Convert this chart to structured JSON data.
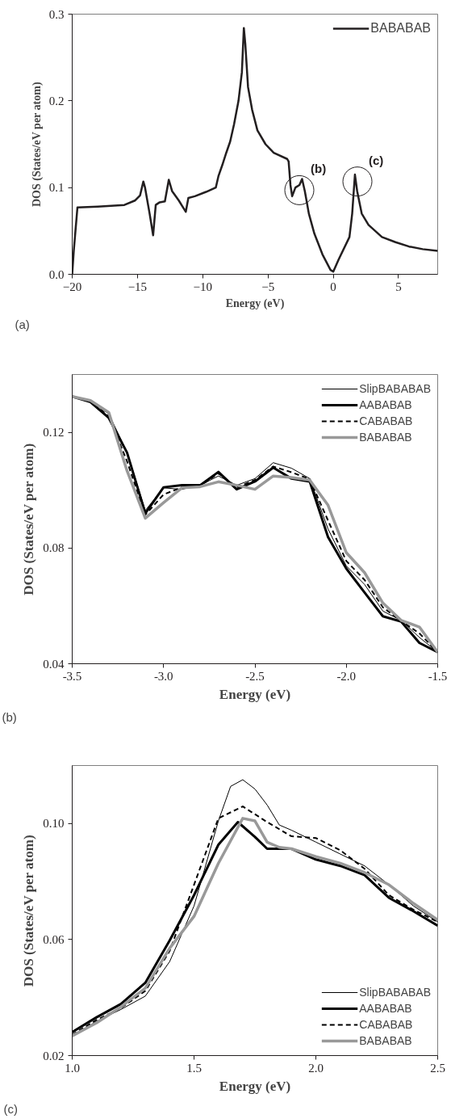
{
  "chart_data": [
    {
      "type": "line",
      "xlabel": "Energy (eV)",
      "ylabel": "DOS (States/eV per atom)",
      "xlim": [
        -20,
        8
      ],
      "ylim": [
        0,
        0.3
      ],
      "xticks": [
        -20,
        -15,
        -10,
        -5,
        0,
        5
      ],
      "yticks": [
        {
          "value": 0,
          "label": "0.0"
        },
        0.1,
        0.2,
        0.3
      ],
      "grid": false,
      "legend": "top right",
      "annotations": [
        {
          "text": "(b)",
          "x": -2.6,
          "y": 0.097
        },
        {
          "text": "(c)",
          "x": 1.85,
          "y": 0.107
        },
        "(a)"
      ],
      "series": [
        {
          "name": "BABABAB",
          "color": "#231f20",
          "x": [
            -20,
            -19.88,
            -19.6,
            -18.05,
            -16,
            -15.2,
            -14.8,
            -14.55,
            -14.42,
            -14.07,
            -13.8,
            -13.6,
            -13.3,
            -12.9,
            -12.6,
            -12.35,
            -11.83,
            -11.3,
            -11.1,
            -10.6,
            -9.75,
            -9.0,
            -8.8,
            -8.5,
            -8.2,
            -7.9,
            -7.6,
            -7.26,
            -7.0,
            -6.85,
            -6.74,
            -6.53,
            -6.22,
            -5.81,
            -5.19,
            -4.56,
            -3.53,
            -3.42,
            -3.28,
            -3.15,
            -2.9,
            -2.59,
            -2.39,
            -2.18,
            -1.87,
            -1.45,
            -0.83,
            -0.21,
            0,
            0.41,
            1.24,
            1.45,
            1.66,
            1.83,
            2.18,
            2.7,
            3.73,
            4.77,
            5.81,
            6.85,
            8.0
          ],
          "values": [
            0,
            0.027,
            0.077,
            0.078,
            0.08,
            0.085,
            0.091,
            0.107,
            0.1,
            0.07,
            0.045,
            0.08,
            0.083,
            0.084,
            0.109,
            0.096,
            0.085,
            0.072,
            0.088,
            0.09,
            0.095,
            0.1,
            0.113,
            0.126,
            0.14,
            0.153,
            0.173,
            0.2,
            0.233,
            0.284,
            0.266,
            0.216,
            0.19,
            0.166,
            0.15,
            0.14,
            0.133,
            0.13,
            0.103,
            0.09,
            0.1,
            0.103,
            0.11,
            0.096,
            0.07,
            0.047,
            0.023,
            0.005,
            0.003,
            0.017,
            0.043,
            0.07,
            0.115,
            0.096,
            0.07,
            0.057,
            0.043,
            0.037,
            0.032,
            0.029,
            0.027
          ]
        }
      ]
    },
    {
      "type": "line",
      "xlabel": "Energy (eV)",
      "ylabel": "DOS (States/eV per atom)",
      "xlim": [
        -3.5,
        -1.5
      ],
      "ylim": [
        0.04,
        0.14
      ],
      "xticks": [
        {
          "value": -3.5,
          "label": "-3.5"
        },
        {
          "value": -3,
          "label": "-3.0"
        },
        {
          "value": -2.5,
          "label": "-2.5"
        },
        {
          "value": -2,
          "label": "-2.0"
        },
        {
          "value": -1.5,
          "label": "-1.5"
        }
      ],
      "yticks": [
        0.04,
        0.08,
        0.12
      ],
      "grid": false,
      "legend": "top right",
      "annotations": [
        "(b)"
      ],
      "x": [
        -3.5,
        -3.4,
        -3.3,
        -3.2,
        -3.1,
        -3.0,
        -2.9,
        -2.8,
        -2.7,
        -2.6,
        -2.5,
        -2.4,
        -2.3,
        -2.2,
        -2.1,
        -2.0,
        -1.9,
        -1.8,
        -1.7,
        -1.6,
        -1.5
      ],
      "series": [
        {
          "name": "SlipBABABAB",
          "color": "#000000",
          "line_style": "solid",
          "values": [
            0.1324,
            0.1308,
            0.1264,
            0.1131,
            0.093,
            0.1008,
            0.1003,
            0.1017,
            0.1049,
            0.1017,
            0.104,
            0.1095,
            0.1076,
            0.104,
            0.0866,
            0.0738,
            0.0674,
            0.0582,
            0.055,
            0.0491,
            0.044
          ]
        },
        {
          "name": "AABABAB",
          "color": "#000000",
          "line_style": "solid",
          "values": [
            0.1324,
            0.1305,
            0.125,
            0.113,
            0.092,
            0.101,
            0.1017,
            0.1017,
            0.1063,
            0.1003,
            0.103,
            0.1078,
            0.104,
            0.103,
            0.0838,
            0.0729,
            0.0646,
            0.0564,
            0.0546,
            0.0472,
            0.044
          ]
        },
        {
          "name": "CABABAB",
          "color": "#000000",
          "line_style": "dashed",
          "values": [
            0.1324,
            0.131,
            0.1255,
            0.11,
            0.0915,
            0.0985,
            0.101,
            0.1015,
            0.1058,
            0.101,
            0.1035,
            0.1082,
            0.1062,
            0.1038,
            0.0895,
            0.0755,
            0.069,
            0.0595,
            0.0548,
            0.0505,
            0.044
          ]
        },
        {
          "name": "BABABAB",
          "color": "#999999",
          "line_style": "solid",
          "values": [
            0.1324,
            0.131,
            0.1269,
            0.1067,
            0.0903,
            0.0957,
            0.1008,
            0.1012,
            0.1029,
            0.1017,
            0.1003,
            0.1049,
            0.1044,
            0.1035,
            0.0948,
            0.0784,
            0.0715,
            0.061,
            0.055,
            0.0527,
            0.044
          ]
        }
      ]
    },
    {
      "type": "line",
      "xlabel": "Energy (eV)",
      "ylabel": "DOS (States/eV per atom)",
      "xlim": [
        1.0,
        2.5
      ],
      "ylim": [
        0.02,
        0.12
      ],
      "xticks": [
        {
          "value": 1,
          "label": "1.0"
        },
        {
          "value": 1.5,
          "label": "1.5"
        },
        {
          "value": 2,
          "label": "2.0"
        },
        {
          "value": 2.5,
          "label": "2.5"
        }
      ],
      "yticks": [
        0.02,
        0.06,
        {
          "value": 0.1,
          "label": "0.10"
        }
      ],
      "grid": false,
      "legend": "bottom right",
      "annotations": [
        "(c)"
      ],
      "series": [
        {
          "name": "SlipBABABAB",
          "color": "#000000",
          "line_style": "solid",
          "x": [
            1.0,
            1.1,
            1.2,
            1.3,
            1.4,
            1.5,
            1.6,
            1.65,
            1.7,
            1.75,
            1.8,
            1.85,
            1.9,
            2.0,
            2.1,
            2.2,
            2.3,
            2.4,
            2.5
          ],
          "values": [
            0.0268,
            0.0318,
            0.0359,
            0.0405,
            0.0524,
            0.0716,
            0.1009,
            0.1128,
            0.1151,
            0.1119,
            0.1064,
            0.0995,
            0.0977,
            0.0936,
            0.0895,
            0.0854,
            0.0789,
            0.0716,
            0.0661
          ]
        },
        {
          "name": "AABABAB",
          "color": "#000000",
          "line_style": "solid",
          "x": [
            1.0,
            1.1,
            1.2,
            1.3,
            1.4,
            1.5,
            1.6,
            1.68,
            1.75,
            1.8,
            1.9,
            2.0,
            2.1,
            2.2,
            2.3,
            2.4,
            2.5
          ],
          "values": [
            0.0281,
            0.0332,
            0.0378,
            0.0451,
            0.0597,
            0.0753,
            0.0927,
            0.1005,
            0.0954,
            0.0913,
            0.0913,
            0.0876,
            0.0854,
            0.0822,
            0.0744,
            0.0698,
            0.0648
          ]
        },
        {
          "name": "CABABAB",
          "color": "#000000",
          "line_style": "dashed",
          "x": [
            1.0,
            1.1,
            1.2,
            1.3,
            1.4,
            1.5,
            1.6,
            1.7,
            1.8,
            1.9,
            2.0,
            2.1,
            2.2,
            2.3,
            2.4,
            2.5
          ],
          "values": [
            0.0272,
            0.0323,
            0.0364,
            0.0423,
            0.0561,
            0.0789,
            0.1018,
            0.1059,
            0.1005,
            0.0956,
            0.095,
            0.0908,
            0.0844,
            0.0753,
            0.0703,
            0.0661
          ]
        },
        {
          "name": "BABABAB",
          "color": "#999999",
          "line_style": "solid",
          "x": [
            1.0,
            1.1,
            1.2,
            1.3,
            1.4,
            1.5,
            1.6,
            1.7,
            1.75,
            1.8,
            1.85,
            1.9,
            2.0,
            2.1,
            2.2,
            2.3,
            2.4,
            2.5
          ],
          "values": [
            0.0268,
            0.0313,
            0.0368,
            0.0432,
            0.057,
            0.068,
            0.0863,
            0.1018,
            0.1009,
            0.0936,
            0.0918,
            0.0913,
            0.0886,
            0.0863,
            0.0831,
            0.0789,
            0.0725,
            0.0668
          ]
        }
      ]
    }
  ]
}
